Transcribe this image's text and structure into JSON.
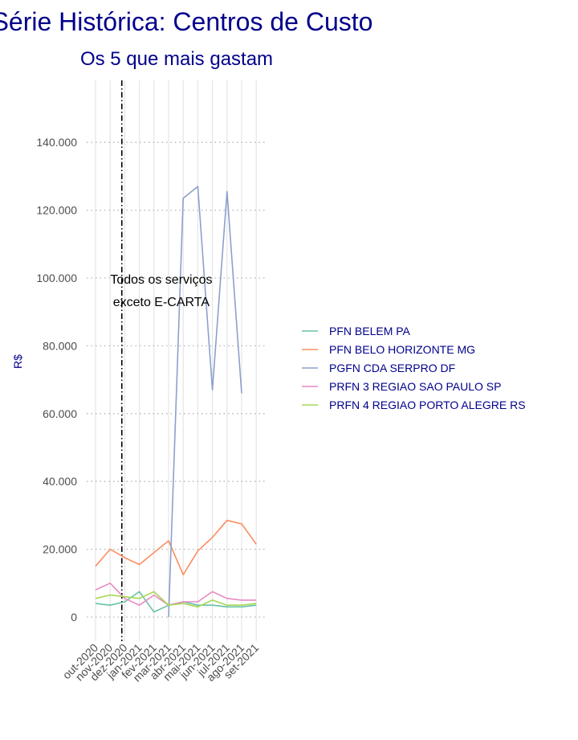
{
  "chart_data": {
    "type": "line",
    "title": "Série Histórica: Centros de Custo",
    "subtitle": "Os 5 que mais gastam",
    "xlabel": "",
    "ylabel": "R$",
    "ylim": [
      -5000,
      150000
    ],
    "yticks": [
      0,
      20000,
      40000,
      60000,
      80000,
      100000,
      120000,
      140000
    ],
    "ytick_labels": [
      "0",
      "20.000",
      "40.000",
      "60.000",
      "80.000",
      "100.000",
      "120.000",
      "140.000"
    ],
    "categories": [
      "out-2020",
      "nov-2020",
      "dez-2020",
      "jan-2021",
      "fev-2021",
      "mar-2021",
      "abr-2021",
      "mai-2021",
      "jun-2021",
      "jul-2021",
      "ago-2021",
      "set-2021"
    ],
    "grid": true,
    "legend_position": "right",
    "vline": {
      "category_position": 1.8,
      "style": "dash-dot",
      "color": "#000000"
    },
    "annotation": {
      "lines": [
        "Todos os serviços",
        "exceto E-CARTA"
      ],
      "category_position": 4.5,
      "y": 97000
    },
    "series": [
      {
        "name": "PFN BELEM PA",
        "color": "#66c2a5",
        "values": [
          4000,
          3500,
          4500,
          7500,
          1500,
          3500,
          4500,
          3500,
          3500,
          3000,
          3000,
          3500
        ]
      },
      {
        "name": "PFN BELO HORIZONTE MG",
        "color": "#fc8d62",
        "values": [
          15000,
          20000,
          17500,
          15500,
          19000,
          22500,
          12500,
          19500,
          23500,
          28500,
          27500,
          21500
        ]
      },
      {
        "name": "PGFN CDA SERPRO DF",
        "color": "#8da0cb",
        "values": [
          null,
          null,
          null,
          null,
          null,
          0,
          123500,
          127000,
          67000,
          125500,
          66000,
          null
        ]
      },
      {
        "name": "PRFN 3 REGIAO SAO PAULO SP",
        "color": "#e78ac3",
        "values": [
          8000,
          10000,
          5500,
          3500,
          6500,
          3500,
          4500,
          4500,
          7500,
          5500,
          5000,
          5000
        ]
      },
      {
        "name": "PRFN 4 REGIAO PORTO ALEGRE RS",
        "color": "#a6d854",
        "values": [
          5500,
          6500,
          6000,
          5500,
          7500,
          3500,
          4000,
          3000,
          5000,
          3500,
          3500,
          4000
        ]
      }
    ]
  }
}
